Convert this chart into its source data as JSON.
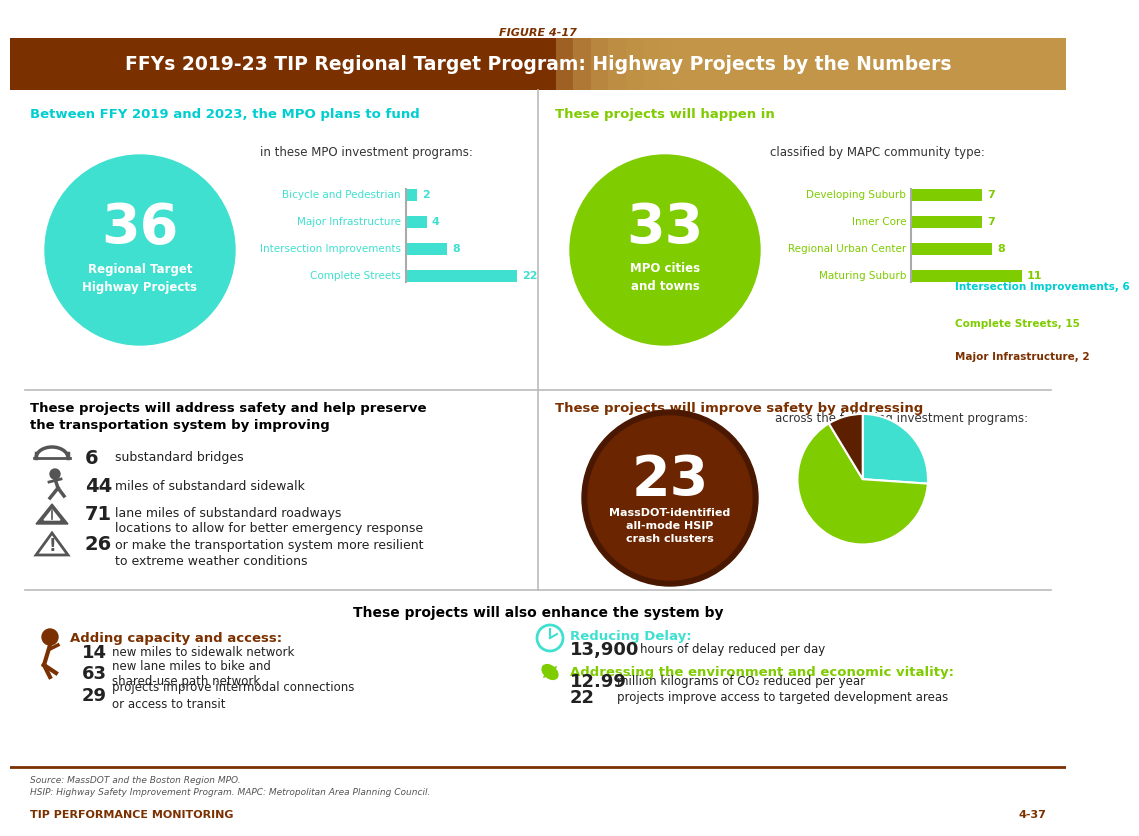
{
  "figure_label": "FIGURE 4-17",
  "title": "FFYs 2019-23 TIP Regional Target Program: Highway Projects by the Numbers",
  "title_bg": "#7B3000",
  "title_fg": "#FFFFFF",
  "s1_header": "Between FFY 2019 and 2023, the MPO plans to fund",
  "s1_header_color": "#00CED1",
  "s1_circle_num": "36",
  "s1_circle_sub": "Regional Target\nHighway Projects",
  "s1_circle_color": "#40E0D0",
  "s1_sub": "in these MPO investment programs:",
  "s1_bars": [
    {
      "label": "Bicycle and Pedestrian",
      "value": 2,
      "max": 22
    },
    {
      "label": "Major Infrastructure",
      "value": 4,
      "max": 22
    },
    {
      "label": "Intersection Improvements",
      "value": 8,
      "max": 22
    },
    {
      "label": "Complete Streets",
      "value": 22,
      "max": 22
    }
  ],
  "s1_bar_color": "#40E0D0",
  "s2_header": "These projects will happen in",
  "s2_header_color": "#7FCC00",
  "s2_circle_num": "33",
  "s2_circle_sub": "MPO cities\nand towns",
  "s2_circle_color": "#7FCC00",
  "s2_sub": "classified by MAPC community type:",
  "s2_bars": [
    {
      "label": "Developing Suburb",
      "value": 7,
      "max": 11
    },
    {
      "label": "Inner Core",
      "value": 7,
      "max": 11
    },
    {
      "label": "Regional Urban Center",
      "value": 8,
      "max": 11
    },
    {
      "label": "Maturing Suburb",
      "value": 11,
      "max": 11
    }
  ],
  "s2_bar_color": "#7FCC00",
  "s3_header": "These projects will address safety and help preserve\nthe transportation system by improving",
  "s3_items": [
    {
      "num": "6",
      "text": "substandard bridges"
    },
    {
      "num": "44",
      "text": "miles of substandard sidewalk"
    },
    {
      "num": "71",
      "text": "lane miles of substandard roadways"
    },
    {
      "num": "26",
      "text": "locations to allow for better emergency response\nor make the transportation system more resilient\nto extreme weather conditions"
    }
  ],
  "s4_header": "These projects will improve safety by addressing",
  "s4_header_color": "#7B3000",
  "s4_circle_num": "23",
  "s4_circle_sub": "MassDOT-identified\nall-mode HSIP\ncrash clusters",
  "s4_circle_color": "#6B2500",
  "s4_sub": "across the following investment programs:",
  "s4_pie": [
    6,
    15,
    2
  ],
  "s4_pie_colors": [
    "#40E0D0",
    "#7FCC00",
    "#5C2000"
  ],
  "s4_pie_labels": [
    "Intersection Improvements, 6",
    "Complete Streets, 15",
    "Major Infrastructure, 2"
  ],
  "s4_pie_label_colors": [
    "#00CED1",
    "#7FCC00",
    "#7B3000"
  ],
  "s5_header": "These projects will also enhance the system by",
  "s5_left_title": "Adding capacity and access:",
  "s5_left_color": "#7B3000",
  "s5_left_items": [
    {
      "num": "14",
      "text": "new miles to sidewalk network"
    },
    {
      "num": "63",
      "text": "new lane miles to bike and\nshared-use path network"
    },
    {
      "num": "29",
      "text": "projects improve intermodal connections\nor access to transit"
    }
  ],
  "s5_mid_title": "Reducing Delay:",
  "s5_mid_color": "#40E0D0",
  "s5_mid_num": "13,900",
  "s5_mid_text": "hours of delay reduced per day",
  "s5_right_title": "Addressing the environment and economic vitality:",
  "s5_right_color": "#7FCC00",
  "s5_right_items": [
    {
      "num": "12.99",
      "text": "million kilograms of CO₂ reduced per year"
    },
    {
      "num": "22",
      "text": "projects improve access to targeted development areas"
    }
  ],
  "footer_src1": "Source: MassDOT and the Boston Region MPO.",
  "footer_src2": "HSIP: Highway Safety Improvement Program. MAPC: Metropolitan Area Planning Council.",
  "footer_left": "TIP PERFORMANCE MONITORING",
  "footer_right": "4-37",
  "footer_color": "#7B3000",
  "divider_color": "#BBBBBB",
  "bg": "#FFFFFF"
}
